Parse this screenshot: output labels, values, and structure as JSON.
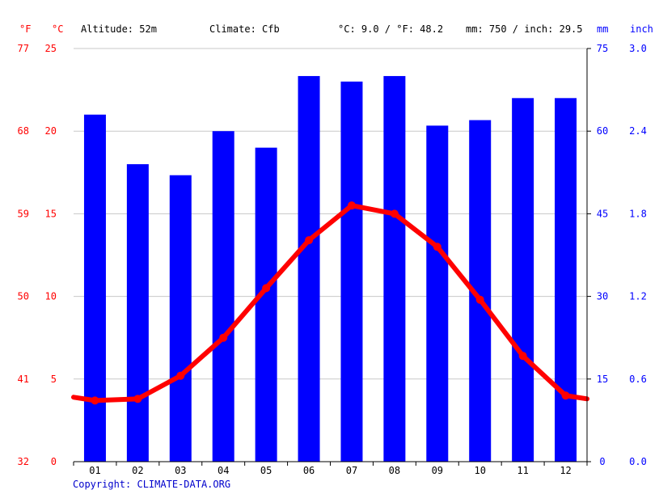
{
  "header": {
    "altitude": "Altitude: 52m",
    "climate": "Climate: Cfb",
    "temp_avg": "°C: 9.0 / °F: 48.2",
    "precip_total": "mm: 750 / inch: 29.5"
  },
  "axes": {
    "left_outer_unit": "°F",
    "left_inner_unit": "°C",
    "right_inner_unit": "mm",
    "right_outer_unit": "inch",
    "fahrenheit_ticks": [
      "32",
      "41",
      "50",
      "59",
      "68",
      "77"
    ],
    "celsius_ticks": [
      "0",
      "5",
      "10",
      "15",
      "20",
      "25"
    ],
    "mm_ticks": [
      "0",
      "15",
      "30",
      "45",
      "60",
      "75"
    ],
    "inch_ticks": [
      "0.0",
      "0.6",
      "1.2",
      "1.8",
      "2.4",
      "3.0"
    ]
  },
  "copyright": "Copyright: CLIMATE-DATA.ORG",
  "colors": {
    "temperature": "#ff0000",
    "precipitation": "#0000ff",
    "grid": "#c8c8c8"
  },
  "chart_data": {
    "type": "bar",
    "categories": [
      "01",
      "02",
      "03",
      "04",
      "05",
      "06",
      "07",
      "08",
      "09",
      "10",
      "11",
      "12"
    ],
    "series": [
      {
        "type": "bar",
        "axis": "mm",
        "values": [
          63,
          54,
          52,
          60,
          57,
          70,
          69,
          70,
          61,
          62,
          66,
          66
        ]
      },
      {
        "type": "line",
        "axis": "°C",
        "values": [
          3.7,
          3.8,
          5.2,
          7.5,
          10.5,
          13.4,
          15.5,
          15.0,
          13.0,
          9.8,
          6.4,
          4.0
        ],
        "edge_start": 3.9,
        "edge_end": 3.8
      }
    ],
    "ylim_celsius": [
      0,
      25
    ],
    "ylim_mm": [
      0,
      75
    ],
    "grid": true
  }
}
